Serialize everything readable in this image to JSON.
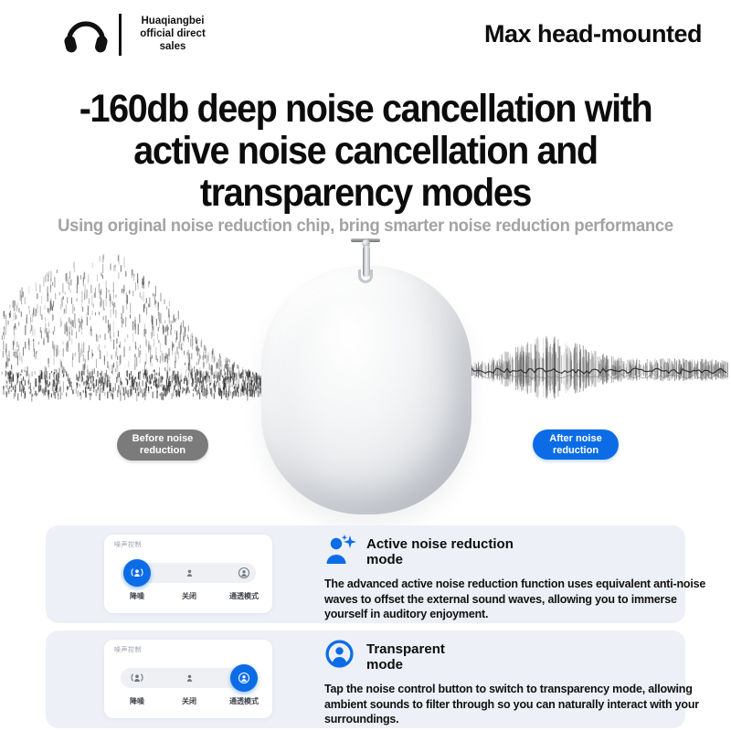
{
  "header": {
    "logo": {
      "icon": "headphones-icon",
      "text": "Huaqiangbei\nofficial direct\nsales"
    },
    "product_tag": "Max head-mounted"
  },
  "hero": {
    "title_lines": [
      "-160db deep noise cancellation with",
      "active noise cancellation and",
      "transparency modes"
    ],
    "subtitle": "Using original noise reduction chip, bring smarter noise reduction performance",
    "before_badge": "Before noise\nreduction",
    "after_badge": "After noise\nreduction"
  },
  "colors": {
    "accent_blue": "#0b6ce6",
    "badge_gray": "#7b7b7b",
    "card_bg": "#edf0f7"
  },
  "noise_panel": {
    "label": "噪声控制",
    "options": [
      {
        "label": "降噪",
        "icon": "anc-person-waves-icon"
      },
      {
        "label": "关闭",
        "icon": "person-off-icon"
      },
      {
        "label": "通透模式",
        "icon": "person-in-circle-icon"
      }
    ]
  },
  "features": [
    {
      "icon": "anc-sparkle-person-icon",
      "title": "Active noise reduction\nmode",
      "description": "The advanced active noise reduction function uses equivalent anti-noise waves to offset the external sound waves, allowing you to immerse yourself in auditory enjoyment.",
      "active_option": 0
    },
    {
      "icon": "transparency-person-icon",
      "title": "Transparent\nmode",
      "description": "Tap the noise control button to switch to transparency mode, allowing ambient sounds to filter through so you can naturally interact with your surroundings.",
      "active_option": 2
    }
  ]
}
